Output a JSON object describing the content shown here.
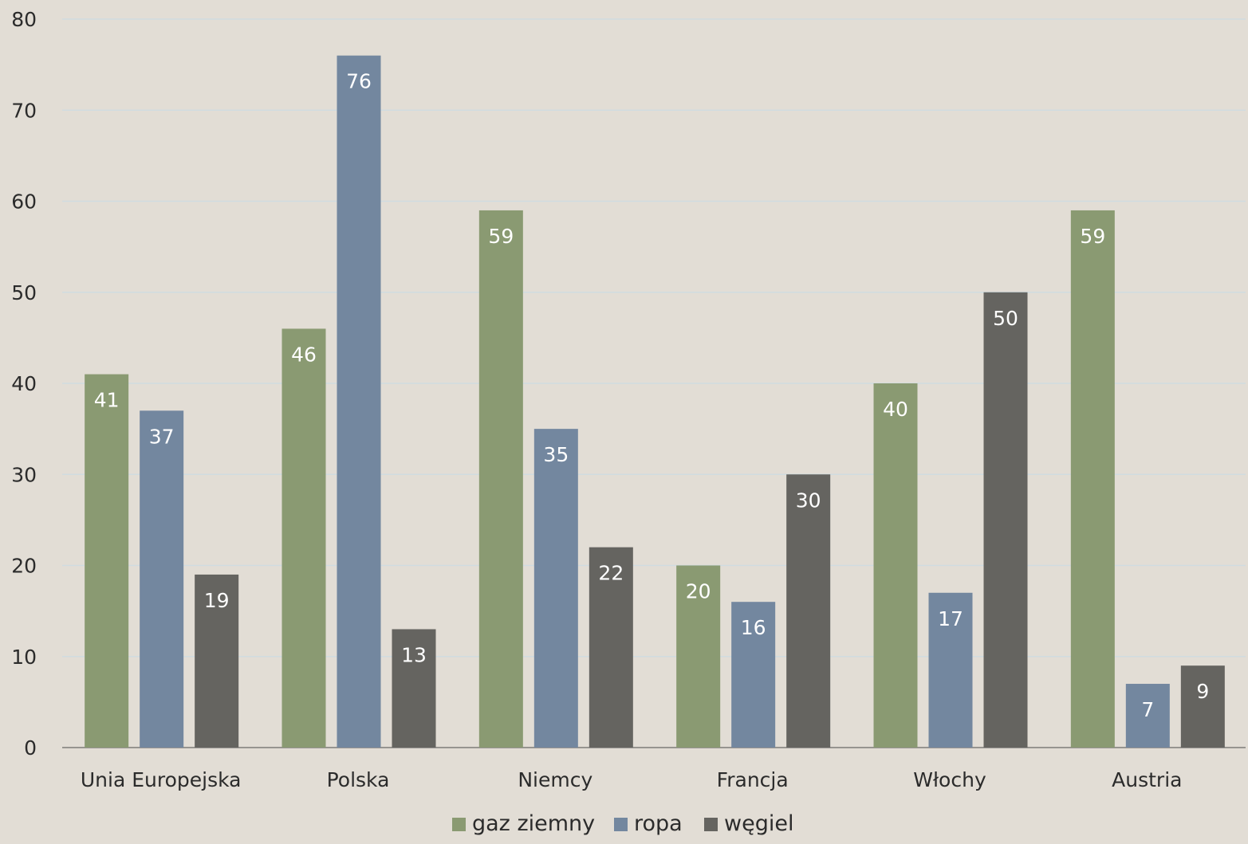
{
  "chart_data": {
    "type": "bar",
    "categories": [
      "Unia Europejska",
      "Polska",
      "Niemcy",
      "Francja",
      "Włochy",
      "Austria"
    ],
    "series": [
      {
        "name": "gaz ziemny",
        "values": [
          41,
          46,
          59,
          20,
          40,
          59
        ],
        "color": "#8a9a72"
      },
      {
        "name": "ropa",
        "values": [
          37,
          76,
          35,
          16,
          17,
          7
        ],
        "color": "#73879f"
      },
      {
        "name": "węgiel",
        "values": [
          19,
          13,
          22,
          30,
          50,
          9
        ],
        "color": "#656460"
      }
    ],
    "ylim": [
      0,
      80
    ],
    "yticks": [
      0,
      10,
      20,
      30,
      40,
      50,
      60,
      70,
      80
    ],
    "grid": true,
    "legend_position": "bottom",
    "data_labels": true,
    "colors": {
      "background": "#e2ddd5",
      "grid": "#d0dce0",
      "label_text": "#ffffff"
    }
  }
}
